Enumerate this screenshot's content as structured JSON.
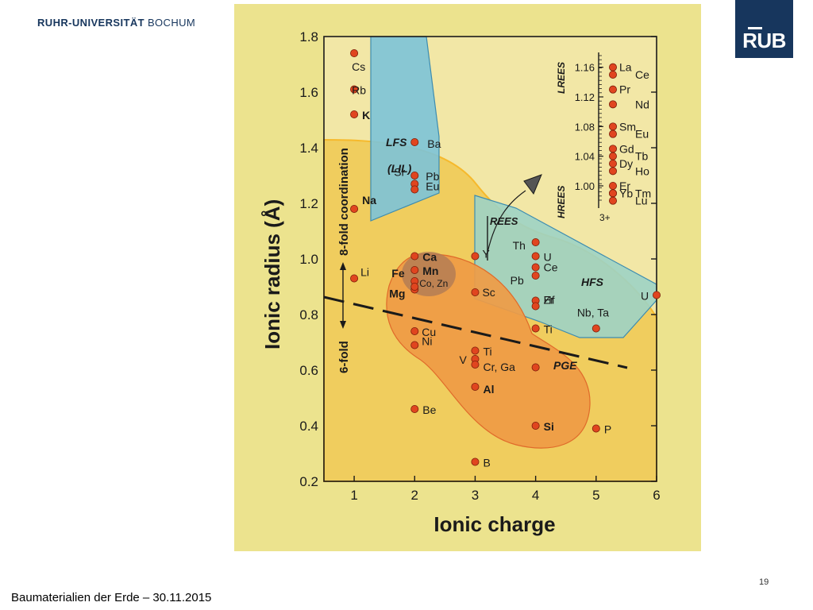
{
  "header": {
    "university_bold": "RUHR-UNIVERSITÄT",
    "university_thin": "BOCHUM",
    "logo": "RUB"
  },
  "footer": {
    "text": "Baumaterialien der Erde – 30.11.2015",
    "page": "19"
  },
  "colors": {
    "background": "#ece38e",
    "plot_fill": "#f2e7a6",
    "yellow_region": "#f0cd5e",
    "blue_region": "#7cc3d8",
    "teal_region": "#9dd3c5",
    "orange_region": "#ef9b45",
    "brown_core": "#b07a55",
    "point": "#e0451f",
    "logo_blue": "#17365d"
  },
  "chart_data": {
    "type": "scatter",
    "xlabel": "Ionic charge",
    "ylabel": "Ionic radius (Å)",
    "xlim": [
      0.5,
      6
    ],
    "ylim": [
      0.2,
      1.8
    ],
    "xticks": [
      "1",
      "2",
      "3",
      "4",
      "5",
      "6"
    ],
    "yticks": [
      "0.2",
      "0.4",
      "0.6",
      "0.8",
      "1.0",
      "1.2",
      "1.4",
      "1.6",
      "1.8"
    ],
    "points": [
      {
        "label": "Cs",
        "x": 1,
        "y": 1.74
      },
      {
        "label": "Rb",
        "x": 1,
        "y": 1.61
      },
      {
        "label": "K",
        "x": 1,
        "y": 1.52
      },
      {
        "label": "Na",
        "x": 1,
        "y": 1.18
      },
      {
        "label": "Li",
        "x": 1,
        "y": 0.93
      },
      {
        "label": "Ba",
        "x": 2,
        "y": 1.42
      },
      {
        "label": "Pb",
        "x": 2,
        "y": 1.3
      },
      {
        "label": "Sr",
        "x": 2,
        "y": 1.27
      },
      {
        "label": "Eu",
        "x": 2,
        "y": 1.25
      },
      {
        "label": "Ca",
        "x": 2,
        "y": 1.01
      },
      {
        "label": "Mn",
        "x": 2,
        "y": 0.96
      },
      {
        "label": "Fe",
        "x": 2,
        "y": 0.92
      },
      {
        "label": "Mg",
        "x": 2,
        "y": 0.89
      },
      {
        "label": "Co, Zn",
        "x": 2,
        "y": 0.9
      },
      {
        "label": "Cu",
        "x": 2,
        "y": 0.74
      },
      {
        "label": "Ni",
        "x": 2,
        "y": 0.69
      },
      {
        "label": "Be",
        "x": 2,
        "y": 0.46
      },
      {
        "label": "Y",
        "x": 3,
        "y": 1.01
      },
      {
        "label": "Sc",
        "x": 3,
        "y": 0.88
      },
      {
        "label": "Ti",
        "x": 3,
        "y": 0.67
      },
      {
        "label": "V",
        "x": 3,
        "y": 0.64
      },
      {
        "label": "Cr, Ga",
        "x": 3,
        "y": 0.62
      },
      {
        "label": "Al",
        "x": 3,
        "y": 0.54
      },
      {
        "label": "B",
        "x": 3,
        "y": 0.27
      },
      {
        "label": "Th",
        "x": 4,
        "y": 1.06
      },
      {
        "label": "U",
        "x": 4,
        "y": 1.01
      },
      {
        "label": "Ce",
        "x": 4,
        "y": 0.97
      },
      {
        "label": "Pb",
        "x": 4,
        "y": 0.94
      },
      {
        "label": "Zr",
        "x": 4,
        "y": 0.85
      },
      {
        "label": "Hf",
        "x": 4,
        "y": 0.83
      },
      {
        "label": "Ti",
        "x": 4,
        "y": 0.75
      },
      {
        "label": "PGE",
        "x": 4,
        "y": 0.61
      },
      {
        "label": "Si",
        "x": 4,
        "y": 0.4
      },
      {
        "label": "Nb, Ta",
        "x": 5,
        "y": 0.75
      },
      {
        "label": "P",
        "x": 5,
        "y": 0.39
      },
      {
        "label": "U",
        "x": 6,
        "y": 0.87
      }
    ],
    "region_labels": [
      "LFS",
      "(LIL)",
      "REES",
      "HFS",
      "PGE"
    ],
    "coordination_labels": [
      "8-fold coordination",
      "6-fold"
    ],
    "ree_inset": {
      "ylim": [
        0.97,
        1.18
      ],
      "yticks": [
        "1.16",
        "1.12",
        "1.08",
        "1.04",
        "1.00"
      ],
      "charge_label": "3+",
      "group_labels": [
        "LREES",
        "HREES"
      ],
      "elements": [
        {
          "label": "La",
          "r": 1.16
        },
        {
          "label": "Ce",
          "r": 1.15
        },
        {
          "label": "Pr",
          "r": 1.13
        },
        {
          "label": "Nd",
          "r": 1.11
        },
        {
          "label": "Sm",
          "r": 1.08
        },
        {
          "label": "Eu",
          "r": 1.07
        },
        {
          "label": "Gd",
          "r": 1.05
        },
        {
          "label": "Tb",
          "r": 1.04
        },
        {
          "label": "Dy",
          "r": 1.03
        },
        {
          "label": "Ho",
          "r": 1.02
        },
        {
          "label": "Er",
          "r": 1.0
        },
        {
          "label": "Tm",
          "r": 0.99
        },
        {
          "label": "Yb",
          "r": 0.99
        },
        {
          "label": "Lu",
          "r": 0.98
        }
      ]
    }
  }
}
